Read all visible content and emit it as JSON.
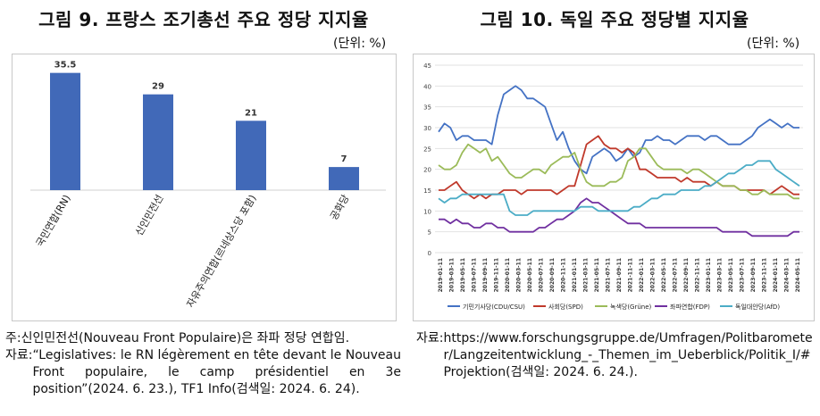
{
  "left": {
    "title": "그림 9. 프랑스 조기총선 주요 정당 지지율",
    "unit": "(단위: %)",
    "notes": [
      {
        "label": "주: ",
        "text": "신인민전선(Nouveau Front Populaire)은 좌파 정당 연합임."
      },
      {
        "label": "자료: ",
        "text": "“Legislatives: le RN légèrement en tête devant le Nouveau Front populaire, le camp présidentiel en 3e position”(2024. 6. 23.), TF1 Info(검색일: 2024. 6. 24)."
      }
    ]
  },
  "right": {
    "title": "그림 10. 독일 주요 정당별 지지율",
    "unit": "(단위: %)",
    "notes": [
      {
        "label": "자료: ",
        "text": "https://www.forschungsgruppe.de/Umfragen/Politbarometer/Langzeitentwicklung_-_Themen_im_Ueberblick/Politik_I/#Projektion(검색일: 2024. 6. 24.)."
      }
    ]
  },
  "colors": {
    "bar": "#4169b8",
    "cdu": "#4472c4",
    "spd": "#c0392b",
    "gruene": "#9bbb59",
    "fdp": "#7030a0",
    "afd": "#4bacc6"
  },
  "chart_data": [
    {
      "type": "bar",
      "categories": [
        "국민연합(RN)",
        "신인민전선",
        "자유주의연합(르네상스당 포함)",
        "공화당"
      ],
      "values": [
        35.5,
        29,
        21,
        7
      ],
      "value_labels": [
        "35.5",
        "29",
        "21",
        "7"
      ],
      "ylim": [
        0,
        40
      ]
    },
    {
      "type": "line",
      "ylim": [
        0,
        45
      ],
      "yticks": [
        0,
        5,
        10,
        15,
        20,
        25,
        30,
        35,
        40,
        45
      ],
      "x_labels": [
        "2019-01-11",
        "2019-03-11",
        "2019-05-11",
        "2019-07-11",
        "2019-09-11",
        "2019-11-11",
        "2020-01-11",
        "2020-03-11",
        "2020-05-11",
        "2020-07-11",
        "2020-09-11",
        "2020-11-11",
        "2021-01-11",
        "2021-03-11",
        "2021-05-11",
        "2021-07-11",
        "2021-09-11",
        "2021-11-11",
        "2022-01-11",
        "2022-03-11",
        "2022-05-11",
        "2022-07-11",
        "2022-09-11",
        "2022-11-11",
        "2023-01-11",
        "2023-03-11",
        "2023-05-11",
        "2023-07-11",
        "2023-09-11",
        "2023-11-11",
        "2024-01-11",
        "2024-03-11",
        "2024-05-11"
      ],
      "legend_position": "bottom",
      "series": [
        {
          "name": "기민기사당(CDU/CSU)",
          "color_key": "cdu",
          "values": [
            29,
            31,
            30,
            27,
            28,
            28,
            27,
            27,
            27,
            26,
            33,
            38,
            39,
            40,
            39,
            37,
            37,
            36,
            35,
            31,
            27,
            29,
            25,
            22,
            20,
            19,
            23,
            24,
            25,
            24,
            22,
            23,
            25,
            23,
            24,
            27,
            27,
            28,
            27,
            27,
            26,
            27,
            28,
            28,
            28,
            27,
            28,
            28,
            27,
            26,
            26,
            26,
            27,
            28,
            30,
            31,
            32,
            31,
            30,
            31,
            30,
            30
          ]
        },
        {
          "name": "사회당(SPD)",
          "color_key": "spd",
          "values": [
            15,
            15,
            16,
            17,
            15,
            14,
            13,
            14,
            13,
            14,
            14,
            15,
            15,
            15,
            14,
            15,
            15,
            15,
            15,
            15,
            14,
            15,
            16,
            16,
            21,
            26,
            27,
            28,
            26,
            25,
            25,
            24,
            25,
            24,
            20,
            20,
            19,
            18,
            18,
            18,
            18,
            17,
            18,
            17,
            17,
            17,
            16,
            17,
            16,
            16,
            16,
            15,
            15,
            15,
            15,
            15,
            14,
            15,
            16,
            15,
            14,
            14
          ]
        },
        {
          "name": "녹색당(Grüne)",
          "color_key": "gruene",
          "values": [
            21,
            20,
            20,
            21,
            24,
            26,
            25,
            24,
            25,
            22,
            23,
            21,
            19,
            18,
            18,
            19,
            20,
            20,
            19,
            21,
            22,
            23,
            23,
            24,
            20,
            17,
            16,
            16,
            16,
            17,
            17,
            18,
            22,
            23,
            25,
            25,
            23,
            21,
            20,
            20,
            20,
            20,
            19,
            20,
            20,
            19,
            18,
            17,
            16,
            16,
            16,
            15,
            15,
            14,
            14,
            15,
            14,
            14,
            14,
            14,
            13,
            13
          ]
        },
        {
          "name": "좌파연합(FDP)",
          "color_key": "fdp",
          "values": [
            8,
            8,
            7,
            8,
            7,
            7,
            6,
            6,
            7,
            7,
            6,
            6,
            5,
            5,
            5,
            5,
            5,
            6,
            6,
            7,
            8,
            8,
            9,
            10,
            12,
            13,
            12,
            12,
            11,
            10,
            9,
            8,
            7,
            7,
            7,
            6,
            6,
            6,
            6,
            6,
            6,
            6,
            6,
            6,
            6,
            6,
            6,
            6,
            5,
            5,
            5,
            5,
            5,
            4,
            4,
            4,
            4,
            4,
            4,
            4,
            5,
            5
          ]
        },
        {
          "name": "독일대안당(AfD)",
          "color_key": "afd",
          "values": [
            13,
            12,
            13,
            13,
            14,
            14,
            14,
            14,
            14,
            14,
            14,
            14,
            10,
            9,
            9,
            9,
            10,
            10,
            10,
            10,
            10,
            10,
            10,
            10,
            11,
            11,
            11,
            10,
            10,
            10,
            10,
            10,
            10,
            11,
            11,
            12,
            13,
            13,
            14,
            14,
            14,
            15,
            15,
            15,
            15,
            16,
            16,
            17,
            18,
            19,
            19,
            20,
            21,
            21,
            22,
            22,
            22,
            20,
            19,
            18,
            17,
            16
          ]
        }
      ]
    }
  ]
}
